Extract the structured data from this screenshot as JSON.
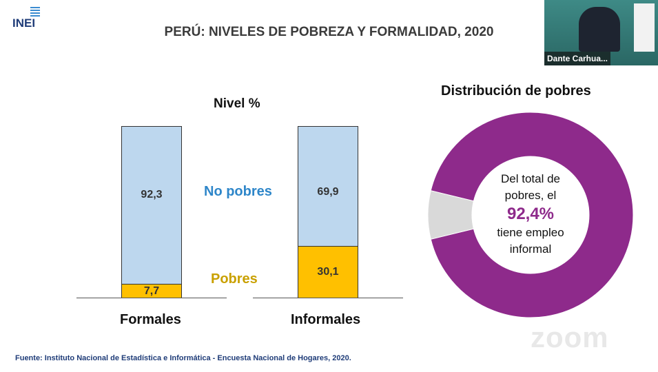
{
  "logo": {
    "text": "INEI"
  },
  "title": "PERÚ: NIVELES DE POBREZA Y FORMALIDAD, 2020",
  "video": {
    "participant_name": "Dante Carhua..."
  },
  "bar_chart": {
    "title": "Nivel %",
    "categories": [
      "Formales",
      "Informales"
    ],
    "series": [
      {
        "name": "No pobres",
        "values": [
          92.3,
          69.9
        ],
        "labels": [
          "92,3",
          "69,9"
        ],
        "color": "#bdd7ee"
      },
      {
        "name": "Pobres",
        "values": [
          7.7,
          30.1
        ],
        "labels": [
          "7,7",
          "30,1"
        ],
        "color": "#ffc000"
      }
    ]
  },
  "donut": {
    "title": "Distribución de pobres",
    "text1": "Del total de",
    "text2": "pobres, el",
    "highlight": "92,4%",
    "text3": "tiene empleo",
    "text4": "informal",
    "values": [
      92.4,
      7.6
    ],
    "colors": [
      "#8e2a8b",
      "#d9d9d9"
    ]
  },
  "source": "Fuente: Instituto Nacional de Estadística e Informática - Encuesta Nacional de Hogares, 2020.",
  "watermark": "zoom"
}
